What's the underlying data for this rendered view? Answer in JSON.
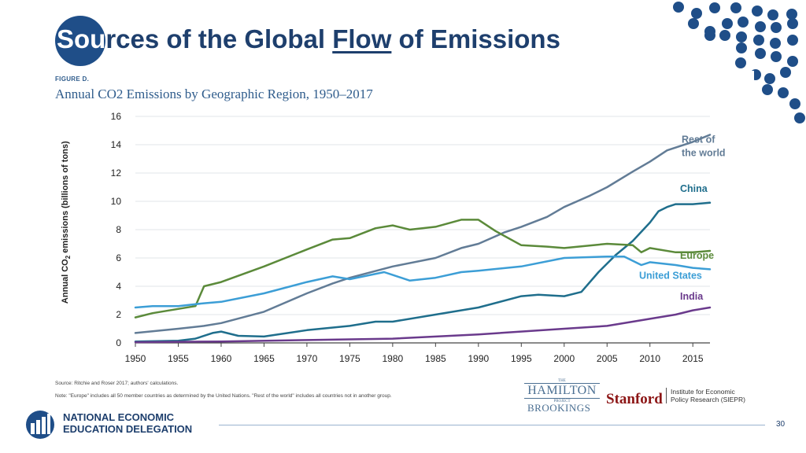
{
  "slide": {
    "title_part1": "Sou",
    "title_part2": "rces of the Global ",
    "title_part3": "Flow",
    "title_part4": " of Emissions",
    "page_number": "30",
    "accent_color": "#1f4e88"
  },
  "figure": {
    "label": "FIGURE D.",
    "source": "Source: Ritchie and Roser 2017; authors' calculations.",
    "note": "Note: \"Europe\" includes all 50 member countries as determined by the United Nations. \"Rest of the world\" includes all countries not in another group."
  },
  "logos": {
    "hamilton_the": "THE",
    "hamilton": "HAMILTON",
    "hamilton_project": "PROJECT",
    "brookings": "BROOKINGS",
    "stanford": "Stanford",
    "siepr_line1": "Institute for Economic",
    "siepr_line2": "Policy Research (SIEPR)",
    "nee_line1": "NATIONAL ECONOMIC",
    "nee_line2": "EDUCATION DELEGATION"
  },
  "chart_data": {
    "type": "line",
    "title": "Annual CO2 Emissions by Geographic Region, 1950–2017",
    "xlabel": "",
    "ylabel_prefix": "Annual CO",
    "ylabel_sub": "2",
    "ylabel_suffix": " emissions (billions of tons)",
    "xlim": [
      1950,
      2017
    ],
    "ylim": [
      0,
      16
    ],
    "x_ticks": [
      1950,
      1955,
      1960,
      1965,
      1970,
      1975,
      1980,
      1985,
      1990,
      1995,
      2000,
      2005,
      2010,
      2015
    ],
    "y_ticks": [
      0,
      2,
      4,
      6,
      8,
      10,
      12,
      14,
      16
    ],
    "grid": true,
    "legend": "direct labels at line ends",
    "series": [
      {
        "name": "Rest of the world",
        "label_lines": [
          "Rest of",
          "the world"
        ],
        "color": "#627c96",
        "x": [
          1950,
          1955,
          1958,
          1960,
          1965,
          1970,
          1973,
          1975,
          1980,
          1985,
          1988,
          1990,
          1993,
          1995,
          1998,
          2000,
          2003,
          2005,
          2008,
          2010,
          2012,
          2015,
          2017
        ],
        "y": [
          0.7,
          1.0,
          1.2,
          1.4,
          2.2,
          3.5,
          4.2,
          4.6,
          5.4,
          6.0,
          6.7,
          7.0,
          7.8,
          8.2,
          8.9,
          9.6,
          10.4,
          11.0,
          12.1,
          12.8,
          13.6,
          14.2,
          14.7
        ]
      },
      {
        "name": "China",
        "label_lines": [
          "China"
        ],
        "color": "#1f6e8c",
        "x": [
          1950,
          1955,
          1957,
          1959,
          1960,
          1962,
          1965,
          1970,
          1975,
          1978,
          1980,
          1985,
          1990,
          1995,
          1997,
          2000,
          2002,
          2004,
          2006,
          2008,
          2010,
          2011,
          2012,
          2013,
          2015,
          2017
        ],
        "y": [
          0.1,
          0.15,
          0.3,
          0.7,
          0.8,
          0.5,
          0.45,
          0.9,
          1.2,
          1.5,
          1.5,
          2.0,
          2.5,
          3.3,
          3.4,
          3.3,
          3.6,
          5.0,
          6.2,
          7.2,
          8.5,
          9.3,
          9.6,
          9.8,
          9.8,
          9.9
        ]
      },
      {
        "name": "Europe",
        "label_lines": [
          "Europe"
        ],
        "color": "#5b8a3a",
        "x": [
          1950,
          1952,
          1957,
          1958,
          1960,
          1965,
          1970,
          1973,
          1975,
          1978,
          1980,
          1982,
          1985,
          1988,
          1990,
          1992,
          1995,
          1998,
          2000,
          2005,
          2008,
          2009,
          2010,
          2013,
          2015,
          2017
        ],
        "y": [
          1.8,
          2.1,
          2.6,
          4.0,
          4.3,
          5.4,
          6.6,
          7.3,
          7.4,
          8.1,
          8.3,
          8.0,
          8.2,
          8.7,
          8.7,
          7.9,
          6.9,
          6.8,
          6.7,
          7.0,
          6.9,
          6.4,
          6.7,
          6.4,
          6.4,
          6.5
        ]
      },
      {
        "name": "United States",
        "label_lines": [
          "United States"
        ],
        "color": "#3c9ed6",
        "x": [
          1950,
          1952,
          1955,
          1958,
          1960,
          1965,
          1970,
          1973,
          1975,
          1979,
          1980,
          1982,
          1985,
          1988,
          1990,
          1995,
          2000,
          2005,
          2007,
          2009,
          2010,
          2013,
          2015,
          2017
        ],
        "y": [
          2.5,
          2.6,
          2.6,
          2.8,
          2.9,
          3.5,
          4.3,
          4.7,
          4.5,
          5.0,
          4.8,
          4.4,
          4.6,
          5.0,
          5.1,
          5.4,
          6.0,
          6.1,
          6.1,
          5.5,
          5.7,
          5.5,
          5.3,
          5.2
        ]
      },
      {
        "name": "India",
        "label_lines": [
          "India"
        ],
        "color": "#6a3a8c",
        "x": [
          1950,
          1960,
          1970,
          1980,
          1990,
          2000,
          2005,
          2008,
          2010,
          2013,
          2015,
          2017
        ],
        "y": [
          0.05,
          0.1,
          0.2,
          0.3,
          0.6,
          1.0,
          1.2,
          1.5,
          1.7,
          2.0,
          2.3,
          2.5
        ]
      }
    ]
  }
}
